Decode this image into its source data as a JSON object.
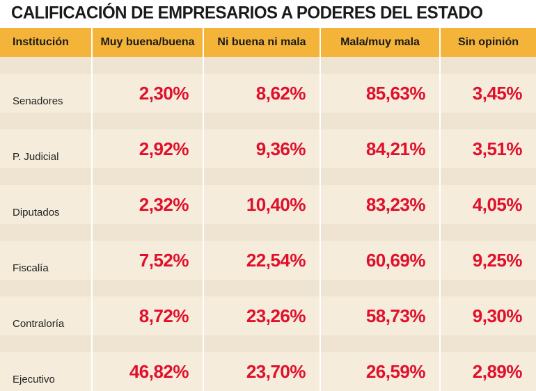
{
  "title": "CALIFICACIÓN DE EMPRESARIOS A PODERES DEL ESTADO",
  "chart_data": {
    "type": "table",
    "title": "CALIFICACIÓN DE EMPRESARIOS A PODERES DEL ESTADO",
    "columns": [
      "Institución",
      "Muy buena/buena",
      "Ni buena ni mala",
      "Mala/muy mala",
      "Sin opinión"
    ],
    "rows": [
      {
        "institution": "Senadores",
        "values": [
          "2,30%",
          "8,62%",
          "85,63%",
          "3,45%"
        ]
      },
      {
        "institution": "P. Judicial",
        "values": [
          "2,92%",
          "9,36%",
          "84,21%",
          "3,51%"
        ]
      },
      {
        "institution": "Diputados",
        "values": [
          "2,32%",
          "10,40%",
          "83,23%",
          "4,05%"
        ]
      },
      {
        "institution": "Fiscalía",
        "values": [
          "7,52%",
          "22,54%",
          "60,69%",
          "9,25%"
        ]
      },
      {
        "institution": "Contraloría",
        "values": [
          "8,72%",
          "23,26%",
          "58,73%",
          "9,30%"
        ]
      },
      {
        "institution": "Ejecutivo",
        "values": [
          "46,82%",
          "23,70%",
          "26,59%",
          "2,89%"
        ]
      }
    ]
  },
  "colors": {
    "header_bg": "#f4b43a",
    "row_bg": "#f5ecdc",
    "band_bg": "#efe4d1",
    "value_text": "#e0102b"
  }
}
